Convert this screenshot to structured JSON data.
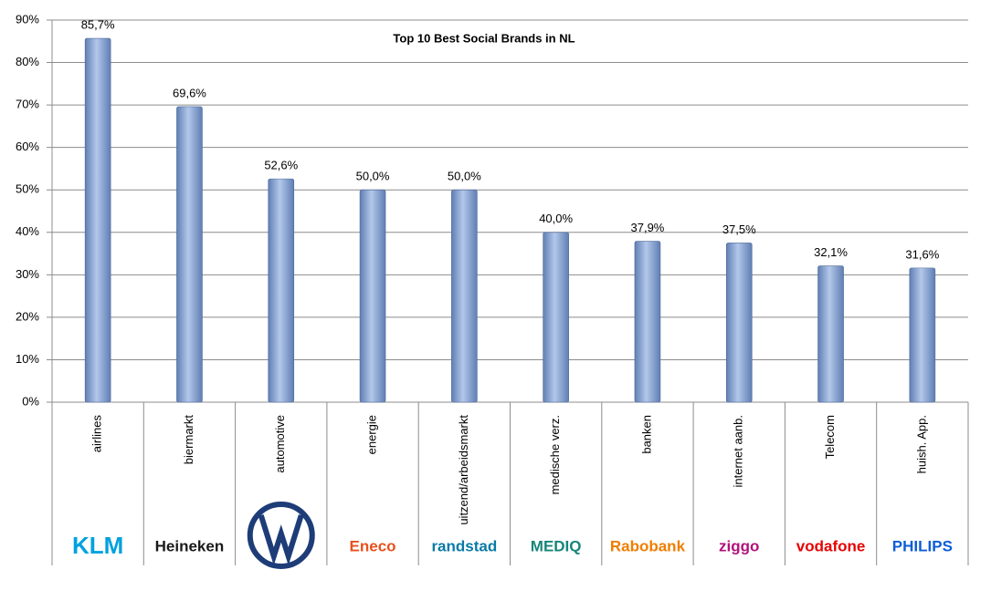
{
  "chart_data": {
    "type": "bar",
    "title": "Top 10 Best Social Brands in NL",
    "categories": [
      "airlines",
      "biermarkt",
      "automotive",
      "energie",
      "uitzend/arbeidsmarkt",
      "medische verz.",
      "banken",
      "internet aanb.",
      "Telecom",
      "huish. App."
    ],
    "values": [
      85.7,
      69.6,
      52.6,
      50.0,
      50.0,
      40.0,
      37.9,
      37.5,
      32.1,
      31.6
    ],
    "value_labels": [
      "85,7%",
      "69,6%",
      "52,6%",
      "50,0%",
      "50,0%",
      "40,0%",
      "37,9%",
      "37,5%",
      "32,1%",
      "31,6%"
    ],
    "logos": [
      "KLM",
      "Heineken",
      null,
      "Eneco",
      "randstad",
      "MEDIQ",
      "Rabobank",
      "ziggo",
      "vodafone",
      "PHILIPS"
    ],
    "color": "#8eaad6",
    "ylim": [
      0,
      90
    ],
    "yticks": [
      {
        "value": 0,
        "label": "0%"
      },
      {
        "value": 10,
        "label": "10%"
      },
      {
        "value": 20,
        "label": "20%"
      },
      {
        "value": 30,
        "label": "30%"
      },
      {
        "value": 40,
        "label": "40%"
      },
      {
        "value": 50,
        "label": "50%"
      },
      {
        "value": 60,
        "label": "60%"
      },
      {
        "value": 70,
        "label": "70%"
      },
      {
        "value": 80,
        "label": "80%"
      },
      {
        "value": 90,
        "label": "90%"
      }
    ],
    "grid": true
  }
}
